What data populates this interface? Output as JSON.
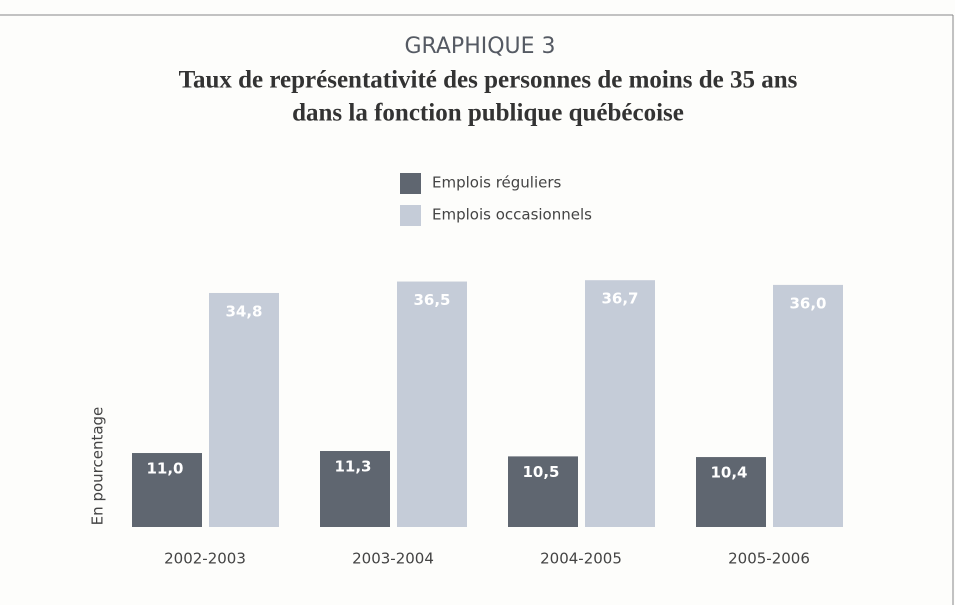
{
  "chart_data": {
    "type": "bar",
    "title": "GRAPHIQUE 3",
    "subtitle": [
      "Taux de représentativité des personnes de moins de 35 ans",
      "dans la fonction publique québécoise"
    ],
    "y_label": "En pourcentage",
    "categories": [
      "2002-2003",
      "2003-2004",
      "2004-2005",
      "2005-2006"
    ],
    "series": [
      {
        "name": "Emplois réguliers",
        "color": "#5f6670",
        "values": [
          11.0,
          11.3,
          10.5,
          10.4
        ],
        "value_labels": [
          "11,0",
          "11,3",
          "10,5",
          "10,4"
        ]
      },
      {
        "name": "Emplois occasionnels",
        "color": "#c5ccd8",
        "values": [
          34.8,
          36.5,
          36.7,
          36.0
        ],
        "value_labels": [
          "34,8",
          "36,5",
          "36,7",
          "36,0"
        ]
      }
    ],
    "ylim": [
      0,
      40
    ]
  }
}
